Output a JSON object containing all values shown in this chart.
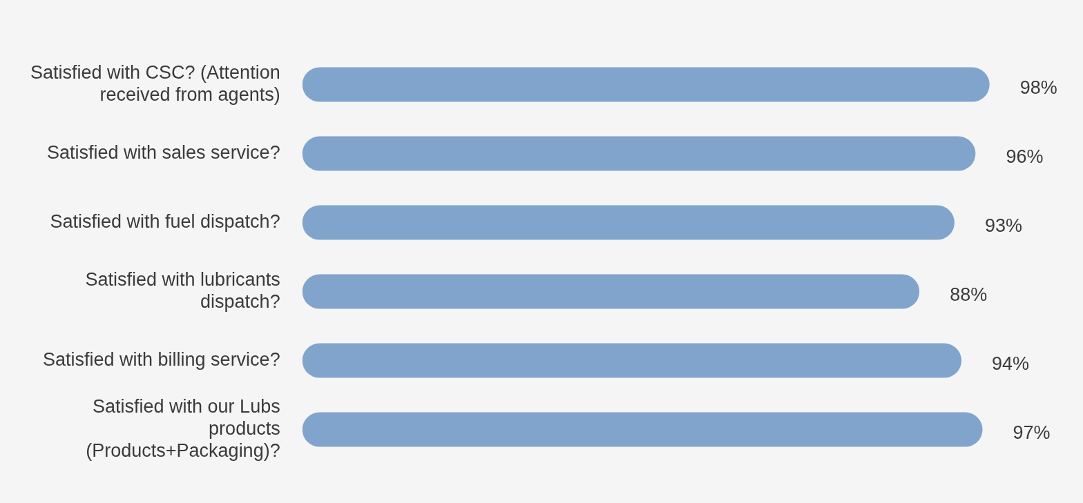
{
  "chart_data": {
    "type": "bar",
    "orientation": "horizontal",
    "categories": [
      "Satisfied with CSC? (Attention received from agents)",
      "Satisfied with sales service?",
      "Satisfied with fuel dispatch?",
      "Satisfied with lubricants dispatch?",
      "Satisfied with billing service?",
      "Satisfied with our Lubs products (Products+Packaging)?"
    ],
    "values": [
      98,
      96,
      93,
      88,
      94,
      97
    ],
    "value_labels": [
      "98%",
      "96%",
      "93%",
      "88%",
      "94%",
      "97%"
    ],
    "color": "#81a4cd",
    "tick_labels": "y",
    "grid": false,
    "legend": false
  }
}
